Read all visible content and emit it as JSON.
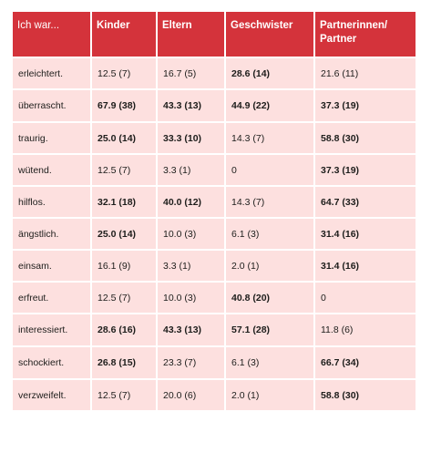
{
  "headers": [
    "Ich war...",
    "Kinder",
    "Eltern",
    "Geschwister",
    "Partnerinnen/\nPartner"
  ],
  "rows": [
    {
      "label": "erleichtert.",
      "cells": [
        {
          "v": "12.5 (7)",
          "b": false
        },
        {
          "v": "16.7 (5)",
          "b": false
        },
        {
          "v": "28.6 (14)",
          "b": true
        },
        {
          "v": "21.6 (11)",
          "b": false
        }
      ]
    },
    {
      "label": "überrascht.",
      "cells": [
        {
          "v": "67.9 (38)",
          "b": true
        },
        {
          "v": "43.3 (13)",
          "b": true
        },
        {
          "v": "44.9 (22)",
          "b": true
        },
        {
          "v": "37.3 (19)",
          "b": true
        }
      ]
    },
    {
      "label": "traurig.",
      "cells": [
        {
          "v": "25.0 (14)",
          "b": true
        },
        {
          "v": "33.3 (10)",
          "b": true
        },
        {
          "v": "14.3 (7)",
          "b": false
        },
        {
          "v": "58.8 (30)",
          "b": true
        }
      ]
    },
    {
      "label": "wütend.",
      "cells": [
        {
          "v": "12.5 (7)",
          "b": false
        },
        {
          "v": "3.3 (1)",
          "b": false
        },
        {
          "v": "0",
          "b": false
        },
        {
          "v": "37.3 (19)",
          "b": true
        }
      ]
    },
    {
      "label": "hilflos.",
      "cells": [
        {
          "v": "32.1 (18)",
          "b": true
        },
        {
          "v": "40.0 (12)",
          "b": true
        },
        {
          "v": "14.3 (7)",
          "b": false
        },
        {
          "v": "64.7 (33)",
          "b": true
        }
      ]
    },
    {
      "label": "ängstlich.",
      "cells": [
        {
          "v": "25.0 (14)",
          "b": true
        },
        {
          "v": "10.0 (3)",
          "b": false
        },
        {
          "v": "6.1 (3)",
          "b": false
        },
        {
          "v": "31.4 (16)",
          "b": true
        }
      ]
    },
    {
      "label": "einsam.",
      "cells": [
        {
          "v": "16.1 (9)",
          "b": false
        },
        {
          "v": "3.3 (1)",
          "b": false
        },
        {
          "v": "2.0 (1)",
          "b": false
        },
        {
          "v": "31.4 (16)",
          "b": true
        }
      ]
    },
    {
      "label": "erfreut.",
      "cells": [
        {
          "v": "12.5 (7)",
          "b": false
        },
        {
          "v": "10.0 (3)",
          "b": false
        },
        {
          "v": "40.8 (20)",
          "b": true
        },
        {
          "v": "0",
          "b": false
        }
      ]
    },
    {
      "label": "interessiert.",
      "cells": [
        {
          "v": "28.6 (16)",
          "b": true
        },
        {
          "v": "43.3 (13)",
          "b": true
        },
        {
          "v": "57.1 (28)",
          "b": true
        },
        {
          "v": "11.8 (6)",
          "b": false
        }
      ]
    },
    {
      "label": "schockiert.",
      "cells": [
        {
          "v": "26.8 (15)",
          "b": true
        },
        {
          "v": "23.3 (7)",
          "b": false
        },
        {
          "v": "6.1 (3)",
          "b": false
        },
        {
          "v": "66.7 (34)",
          "b": true
        }
      ]
    },
    {
      "label": "verzweifelt.",
      "cells": [
        {
          "v": "12.5 (7)",
          "b": false
        },
        {
          "v": "20.0 (6)",
          "b": false
        },
        {
          "v": "2.0 (1)",
          "b": false
        },
        {
          "v": "58.8 (30)",
          "b": true
        }
      ]
    }
  ],
  "colors": {
    "header_bg": "#d4333b",
    "row_bg": "#fde0df",
    "text": "#1d1d1b"
  }
}
